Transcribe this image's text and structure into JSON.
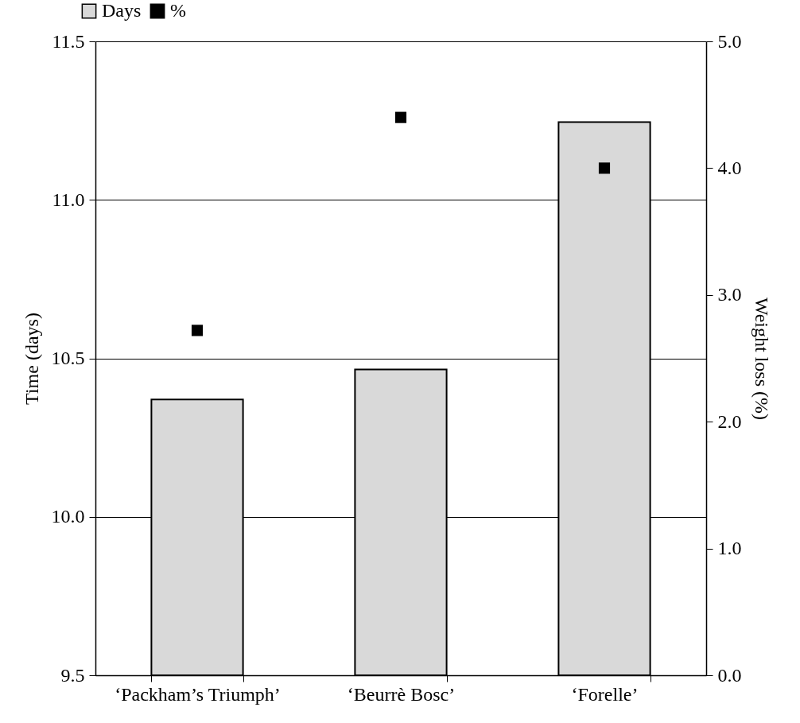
{
  "chart_data": {
    "type": "bar",
    "categories": [
      "‘Packham’s Triumph’",
      "‘Beurrè Bosc’",
      "‘Forelle’"
    ],
    "series": [
      {
        "name": "Days",
        "color": "#d9d9d9",
        "values": [
          10.37,
          10.465,
          11.245
        ]
      },
      {
        "name": "%",
        "type": "scatter",
        "axis": "y2",
        "color": "#000000",
        "values": [
          2.72,
          4.4,
          4.0
        ]
      }
    ],
    "ylabel": "Time (days)",
    "y2label": "Weight loss (%)",
    "ylim": [
      9.5,
      11.5
    ],
    "yticks": [
      {
        "value": 9.5,
        "label": "9.5"
      },
      {
        "value": 10,
        "label": "10.0"
      },
      {
        "value": 10.5,
        "label": "10.5"
      },
      {
        "value": 11,
        "label": "11.0"
      },
      {
        "value": 11.5,
        "label": "11.5"
      }
    ],
    "y2lim": [
      0,
      5
    ],
    "y2ticks": [
      {
        "value": 0,
        "label": "0.0"
      },
      {
        "value": 1,
        "label": "1.0"
      },
      {
        "value": 2,
        "label": "2.0"
      },
      {
        "value": 3,
        "label": "3.0"
      },
      {
        "value": 4,
        "label": "4.0"
      },
      {
        "value": 5,
        "label": "5.0"
      }
    ],
    "grid": "y",
    "legend": "top left",
    "marker": "square"
  }
}
